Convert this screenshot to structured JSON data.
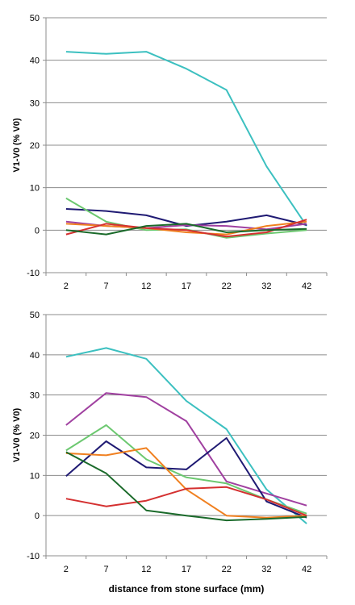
{
  "chart_data": [
    {
      "type": "line",
      "ylabel": "V1-V0 (% V0)",
      "xlabel": "",
      "categories": [
        "2",
        "7",
        "12",
        "17",
        "22",
        "32",
        "42"
      ],
      "ylim": [
        -10,
        50
      ],
      "yticks": [
        -10,
        0,
        10,
        20,
        30,
        40,
        50
      ],
      "grid": "horizontal",
      "series": [
        {
          "color": "#3cc0c0",
          "values": [
            42,
            41.5,
            42,
            38,
            33,
            15,
            1
          ]
        },
        {
          "color": "#1f1a73",
          "values": [
            5,
            4.5,
            3.5,
            1,
            2,
            3.5,
            1.2
          ]
        },
        {
          "color": "#6cc870",
          "values": [
            7.5,
            2,
            0,
            0.2,
            -1.8,
            -0.8,
            0
          ]
        },
        {
          "color": "#a040a0",
          "values": [
            2,
            1,
            0.5,
            1.2,
            1,
            0.2,
            1.5
          ]
        },
        {
          "color": "#f08020",
          "values": [
            1.5,
            1,
            0.5,
            -0.5,
            -1,
            1,
            2
          ]
        },
        {
          "color": "#d43030",
          "values": [
            -1,
            1.5,
            0.5,
            0,
            -1.5,
            -0.5,
            2.5
          ]
        },
        {
          "color": "#1a6a2a",
          "values": [
            0,
            -1,
            1,
            1.5,
            -0.5,
            0,
            0.3
          ]
        }
      ]
    },
    {
      "type": "line",
      "ylabel": "V1-V0 (% V0)",
      "xlabel": "distance from stone surface (mm)",
      "categories": [
        "2",
        "7",
        "12",
        "17",
        "22",
        "32",
        "42"
      ],
      "ylim": [
        -10,
        50
      ],
      "yticks": [
        -10,
        0,
        10,
        20,
        30,
        40,
        50
      ],
      "grid": "horizontal",
      "series": [
        {
          "color": "#3cc0c0",
          "values": [
            39.5,
            41.7,
            39,
            28.5,
            21.5,
            6.5,
            -2
          ]
        },
        {
          "color": "#a040a0",
          "values": [
            22.5,
            30.5,
            29.5,
            23.5,
            8.5,
            5.5,
            2.5
          ]
        },
        {
          "color": "#6cc870",
          "values": [
            16.2,
            22.5,
            14,
            9.5,
            8,
            4,
            0.5
          ]
        },
        {
          "color": "#1f1a73",
          "values": [
            9.8,
            18.5,
            12,
            11.5,
            19.3,
            3.5,
            -0.5
          ]
        },
        {
          "color": "#f08020",
          "values": [
            15.5,
            15,
            16.8,
            6.5,
            0,
            -0.5,
            0
          ]
        },
        {
          "color": "#d43030",
          "values": [
            4.2,
            2.3,
            3.7,
            6.7,
            7.1,
            4,
            0
          ]
        },
        {
          "color": "#1a6a2a",
          "values": [
            15.8,
            10.5,
            1.3,
            0,
            -1.2,
            -0.8,
            -0.3
          ]
        }
      ]
    }
  ]
}
